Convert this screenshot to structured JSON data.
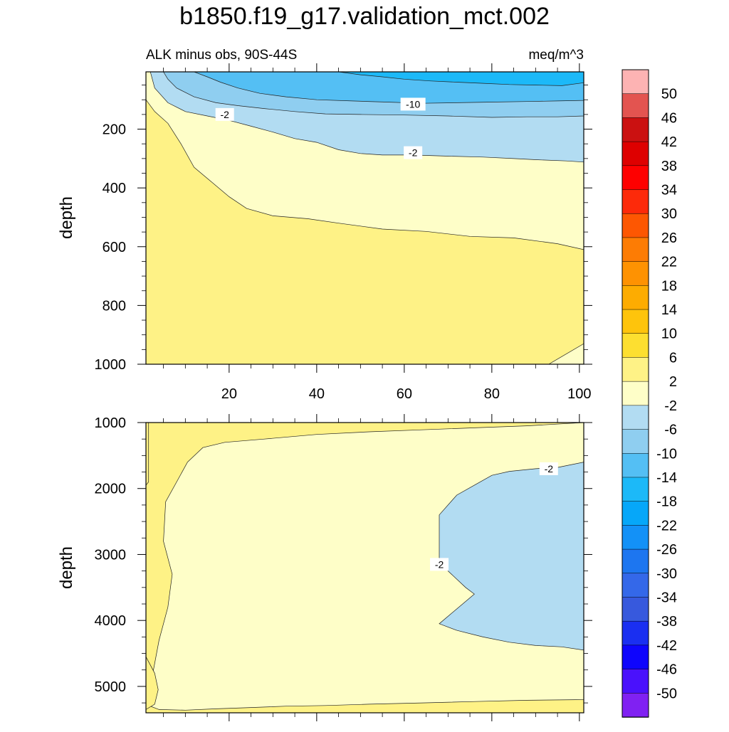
{
  "title": "b1850.f19_g17.validation_mct.002",
  "chart_data": [
    {
      "type": "heatmap",
      "panel": "upper",
      "left_label": "ALK minus obs, 90S-44S",
      "right_label": "meq/m^3",
      "xlabel": "",
      "ylabel": "depth",
      "xlim": [
        1,
        101
      ],
      "ylim": [
        1000,
        5
      ],
      "x_ticks": [
        20,
        40,
        60,
        80,
        100
      ],
      "y_ticks": [
        200,
        400,
        600,
        800,
        1000
      ],
      "contour_labels": [
        {
          "text": "-2",
          "x": 19,
          "y": 150
        },
        {
          "text": "-10",
          "x": 62,
          "y": 115
        },
        {
          "text": "-2",
          "x": 62,
          "y": 280
        }
      ]
    },
    {
      "type": "heatmap",
      "panel": "lower",
      "xlabel": "",
      "ylabel": "depth",
      "xlim": [
        1,
        101
      ],
      "ylim": [
        5400,
        1000
      ],
      "x_ticks": [
        20,
        40,
        60,
        80,
        100
      ],
      "y_ticks": [
        1000,
        2000,
        3000,
        4000,
        5000
      ],
      "contour_labels": [
        {
          "text": "-2",
          "x": 93,
          "y": 1700
        },
        {
          "text": "-2",
          "x": 68,
          "y": 3150
        }
      ]
    }
  ],
  "colorbar": {
    "labels": [
      "50",
      "46",
      "42",
      "38",
      "34",
      "30",
      "26",
      "22",
      "18",
      "14",
      "10",
      "6",
      "2",
      "-2",
      "-6",
      "-10",
      "-14",
      "-18",
      "-22",
      "-26",
      "-30",
      "-34",
      "-38",
      "-42",
      "-46",
      "-50"
    ],
    "colors": [
      "#fdb3b3",
      "#e35450",
      "#cb1111",
      "#de0000",
      "#fe0000",
      "#fd2a0a",
      "#fd5702",
      "#fd7c04",
      "#fe9202",
      "#fdac01",
      "#fec40c",
      "#fddf30",
      "#fef286",
      "#fefec8",
      "#b2dcf2",
      "#8fcef0",
      "#54bff4",
      "#1cb9f8",
      "#06a7f9",
      "#1391f7",
      "#1d76f0",
      "#3468e9",
      "#3759dd",
      "#1a2ff1",
      "#0e05fd",
      "#4a11fc",
      "#8021f2"
    ]
  }
}
